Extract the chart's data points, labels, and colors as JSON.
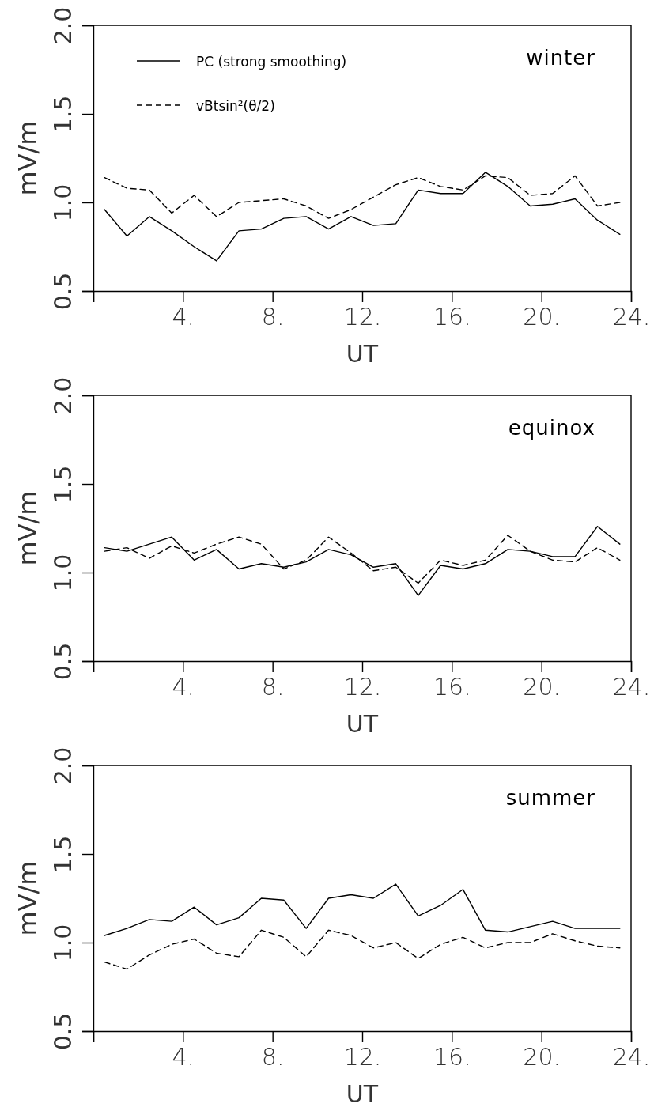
{
  "chart_data": [
    {
      "type": "line",
      "annotations": [
        "winter"
      ],
      "xlabel": "UT",
      "ylabel": "mV/m",
      "xlim": [
        0,
        24
      ],
      "ylim": [
        0.5,
        2.0
      ],
      "xticks": [
        {
          "value": 0,
          "label": null
        },
        {
          "value": 4,
          "label": "4."
        },
        {
          "value": 8,
          "label": "8."
        },
        {
          "value": 12,
          "label": "12."
        },
        {
          "value": 16,
          "label": "16."
        },
        {
          "value": 20,
          "label": "20."
        },
        {
          "value": 24,
          "label": "24."
        }
      ],
      "yticks": [
        {
          "value": 0.5,
          "label": "0.5"
        },
        {
          "value": 1.0,
          "label": "1.0"
        },
        {
          "value": 1.5,
          "label": "1.5"
        },
        {
          "value": 2.0,
          "label": "2.0"
        }
      ],
      "x": [
        0.5,
        1.5,
        2.5,
        3.5,
        4.5,
        5.5,
        6.5,
        7.5,
        8.5,
        9.5,
        10.5,
        11.5,
        12.5,
        13.5,
        14.5,
        15.5,
        16.5,
        17.5,
        18.5,
        19.5,
        20.5,
        21.5,
        22.5,
        23.5
      ],
      "legend": "top left",
      "grid": false,
      "series": [
        {
          "name": "PC (strong smoothing)",
          "color": "#000000",
          "line_style": "solid",
          "values": [
            0.96,
            0.81,
            0.92,
            0.84,
            0.75,
            0.67,
            0.84,
            0.85,
            0.91,
            0.92,
            0.85,
            0.92,
            0.87,
            0.88,
            1.07,
            1.05,
            1.05,
            1.17,
            1.09,
            0.98,
            0.99,
            1.02,
            0.9,
            0.82
          ]
        },
        {
          "name": "vBtsin²(θ/2)",
          "color": "#000000",
          "line_style": "dashed",
          "values": [
            1.14,
            1.08,
            1.07,
            0.94,
            1.04,
            0.92,
            1.0,
            1.01,
            1.02,
            0.98,
            0.91,
            0.96,
            1.03,
            1.1,
            1.14,
            1.09,
            1.07,
            1.15,
            1.14,
            1.04,
            1.05,
            1.15,
            0.98,
            1.0
          ]
        }
      ]
    },
    {
      "type": "line",
      "annotations": [
        "equinox"
      ],
      "xlabel": "UT",
      "ylabel": "mV/m",
      "xlim": [
        0,
        24
      ],
      "ylim": [
        0.5,
        2.0
      ],
      "xticks": [
        {
          "value": 0,
          "label": null
        },
        {
          "value": 4,
          "label": "4."
        },
        {
          "value": 8,
          "label": "8."
        },
        {
          "value": 12,
          "label": "12."
        },
        {
          "value": 16,
          "label": "16."
        },
        {
          "value": 20,
          "label": "20."
        },
        {
          "value": 24,
          "label": "24."
        }
      ],
      "yticks": [
        {
          "value": 0.5,
          "label": "0.5"
        },
        {
          "value": 1.0,
          "label": "1.0"
        },
        {
          "value": 1.5,
          "label": "1.5"
        },
        {
          "value": 2.0,
          "label": "2.0"
        }
      ],
      "x": [
        0.5,
        1.5,
        2.5,
        3.5,
        4.5,
        5.5,
        6.5,
        7.5,
        8.5,
        9.5,
        10.5,
        11.5,
        12.5,
        13.5,
        14.5,
        15.5,
        16.5,
        17.5,
        18.5,
        19.5,
        20.5,
        21.5,
        22.5,
        23.5
      ],
      "grid": false,
      "series": [
        {
          "color": "#000000",
          "line_style": "solid",
          "values": [
            1.14,
            1.12,
            1.16,
            1.2,
            1.07,
            1.13,
            1.02,
            1.05,
            1.03,
            1.06,
            1.13,
            1.1,
            1.03,
            1.05,
            0.87,
            1.04,
            1.02,
            1.05,
            1.13,
            1.12,
            1.09,
            1.09,
            1.26,
            1.16
          ]
        },
        {
          "color": "#000000",
          "line_style": "dashed",
          "values": [
            1.12,
            1.14,
            1.08,
            1.15,
            1.11,
            1.16,
            1.2,
            1.16,
            1.02,
            1.07,
            1.2,
            1.11,
            1.01,
            1.03,
            0.94,
            1.07,
            1.04,
            1.07,
            1.21,
            1.12,
            1.07,
            1.06,
            1.14,
            1.07
          ]
        }
      ]
    },
    {
      "type": "line",
      "annotations": [
        "summer"
      ],
      "xlabel": "UT",
      "ylabel": "mV/m",
      "xlim": [
        0,
        24
      ],
      "ylim": [
        0.5,
        2.0
      ],
      "xticks": [
        {
          "value": 0,
          "label": null
        },
        {
          "value": 4,
          "label": "4."
        },
        {
          "value": 8,
          "label": "8."
        },
        {
          "value": 12,
          "label": "12."
        },
        {
          "value": 16,
          "label": "16."
        },
        {
          "value": 20,
          "label": "20."
        },
        {
          "value": 24,
          "label": "24."
        }
      ],
      "yticks": [
        {
          "value": 0.5,
          "label": "0.5"
        },
        {
          "value": 1.0,
          "label": "1.0"
        },
        {
          "value": 1.5,
          "label": "1.5"
        },
        {
          "value": 2.0,
          "label": "2.0"
        }
      ],
      "x": [
        0.5,
        1.5,
        2.5,
        3.5,
        4.5,
        5.5,
        6.5,
        7.5,
        8.5,
        9.5,
        10.5,
        11.5,
        12.5,
        13.5,
        14.5,
        15.5,
        16.5,
        17.5,
        18.5,
        19.5,
        20.5,
        21.5,
        22.5,
        23.5
      ],
      "grid": false,
      "series": [
        {
          "color": "#000000",
          "line_style": "solid",
          "values": [
            1.04,
            1.08,
            1.13,
            1.12,
            1.2,
            1.1,
            1.14,
            1.25,
            1.24,
            1.08,
            1.25,
            1.27,
            1.25,
            1.33,
            1.15,
            1.21,
            1.3,
            1.07,
            1.06,
            1.09,
            1.12,
            1.08,
            1.08,
            1.08
          ]
        },
        {
          "color": "#000000",
          "line_style": "dashed",
          "values": [
            0.89,
            0.85,
            0.93,
            0.99,
            1.02,
            0.94,
            0.92,
            1.07,
            1.03,
            0.92,
            1.07,
            1.04,
            0.97,
            1.0,
            0.91,
            0.99,
            1.03,
            0.97,
            1.0,
            1.0,
            1.05,
            1.01,
            0.98,
            0.97
          ]
        }
      ]
    }
  ]
}
